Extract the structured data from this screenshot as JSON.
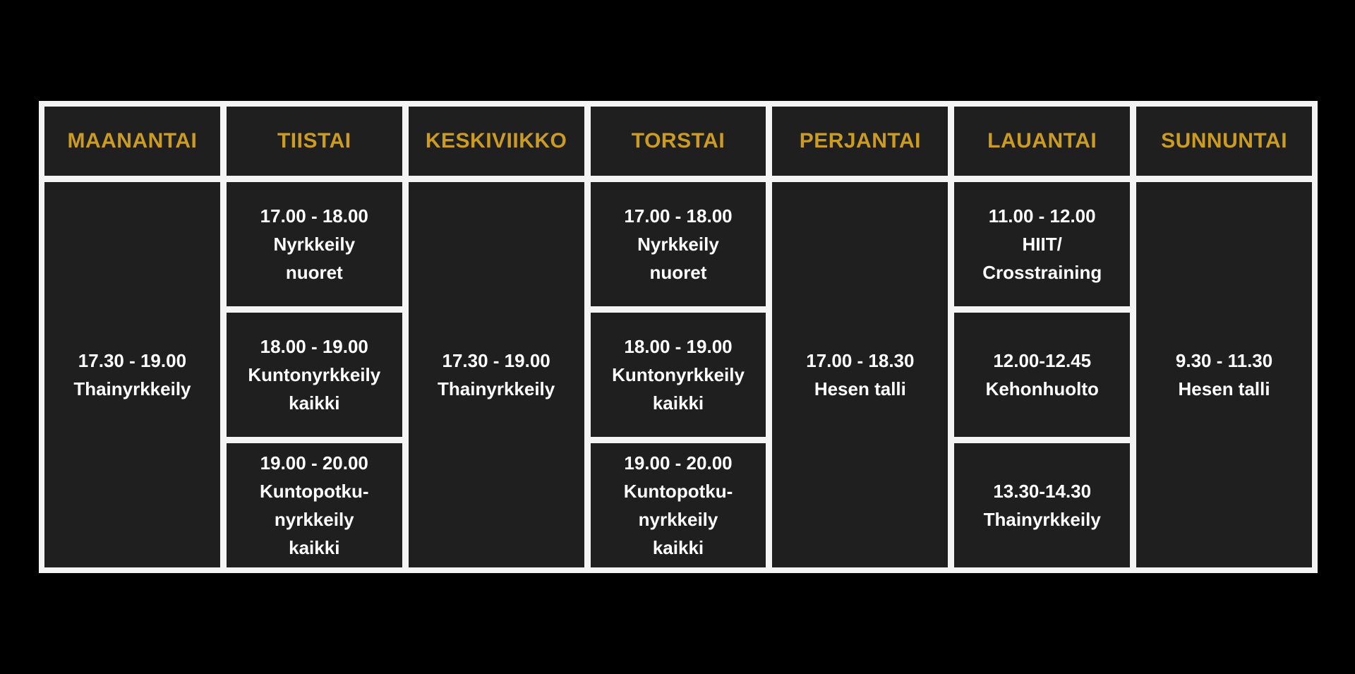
{
  "theme": {
    "background": "#000000",
    "grid_white": "#f4f4f4",
    "cell_bg": "#1f1f1f",
    "header_gold": "#cc9b22",
    "body_text": "#ffffff"
  },
  "schedule": {
    "columns": [
      {
        "id": "maanantai",
        "header": "MAANANTAI",
        "cells": [
          {
            "text": "17.30 - 19.00\nThainyrkkeily"
          }
        ]
      },
      {
        "id": "tiistai",
        "header": "TIISTAI",
        "cells": [
          {
            "text": "17.00 - 18.00\nNyrkkeily\nnuoret"
          },
          {
            "text": "18.00 - 19.00\nKuntonyrkkeily\nkaikki"
          },
          {
            "text": "19.00 - 20.00\nKuntopotku-\nnyrkkeily\nkaikki"
          }
        ]
      },
      {
        "id": "keskiviikko",
        "header": "KESKIVIIKKO",
        "cells": [
          {
            "text": "17.30 - 19.00\nThainyrkkeily"
          }
        ]
      },
      {
        "id": "torstai",
        "header": "TORSTAI",
        "cells": [
          {
            "text": "17.00 - 18.00\nNyrkkeily\nnuoret"
          },
          {
            "text": "18.00 - 19.00\nKuntonyrkkeily\nkaikki"
          },
          {
            "text": "19.00 - 20.00\nKuntopotku-\nnyrkkeily\nkaikki"
          }
        ]
      },
      {
        "id": "perjantai",
        "header": "PERJANTAI",
        "cells": [
          {
            "text": "17.00 - 18.30\nHesen talli"
          }
        ]
      },
      {
        "id": "lauantai",
        "header": "LAUANTAI",
        "cells": [
          {
            "text": "11.00 - 12.00\nHIIT/\nCrosstraining"
          },
          {
            "text": "12.00-12.45\nKehonhuolto"
          },
          {
            "text": "13.30-14.30\nThainyrkkeily"
          }
        ]
      },
      {
        "id": "sunnuntai",
        "header": "SUNNUNTAI",
        "cells": [
          {
            "text": "9.30 - 11.30\nHesen talli"
          }
        ]
      }
    ]
  }
}
